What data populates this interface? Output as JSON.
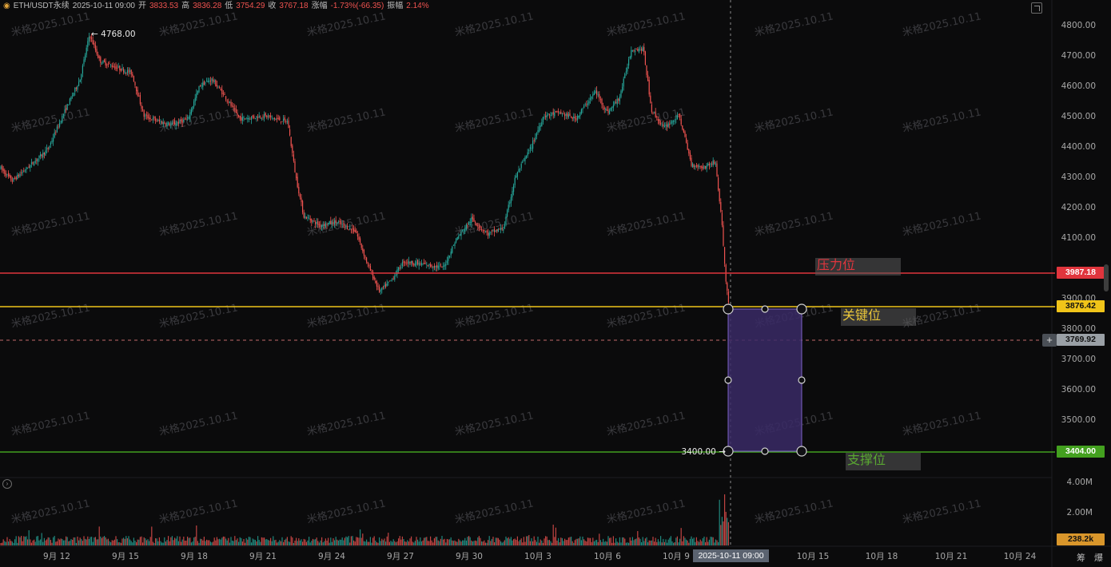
{
  "header": {
    "symbol": "ETH/USDT永续",
    "datetime": "2025-10-11 09:00",
    "open_label": "开",
    "open": "3833.53",
    "high_label": "高",
    "high": "3836.28",
    "low_label": "低",
    "low": "3754.29",
    "close_label": "收",
    "close": "3767.18",
    "change_label": "涨幅",
    "change": "-1.73%(-66.35)",
    "amplitude_label": "振幅",
    "amplitude": "2.14%"
  },
  "watermark": "米格2025.10.11",
  "y_axis": {
    "ticks": [
      "4800.00",
      "4700.00",
      "4600.00",
      "4500.00",
      "4400.00",
      "4300.00",
      "4200.00",
      "4100.00",
      "3900.00",
      "3800.00",
      "3700.00",
      "3600.00",
      "3500.00"
    ],
    "volume_ticks": [
      "4.00M",
      "2.00M"
    ]
  },
  "x_axis": {
    "ticks": [
      "9月 12",
      "9月 15",
      "9月 18",
      "9月 21",
      "9月 24",
      "9月 27",
      "9月 30",
      "10月 3",
      "10月 6",
      "10月 9",
      "10月 15",
      "10月 18",
      "10月 21",
      "10月 24"
    ],
    "crosshair_time": "2025-10-11 09:00"
  },
  "annotations": {
    "peak_label": "← 4768.00",
    "low_label": "3400.00 →",
    "resistance_text": "压力位",
    "key_text": "关键位",
    "support_text": "支撑位"
  },
  "price_labels": {
    "resistance": "3987.18",
    "key": "3876.42",
    "crosshair": "3769.92",
    "support": "3404.00",
    "volume": "238.2k"
  },
  "controls": {
    "crosshair_add": "+",
    "dock_left": "筹",
    "dock_right": "爆",
    "collapse": "›"
  },
  "colors": {
    "up": "#26a69a",
    "down": "#ef5350",
    "resistance": "#e0353d",
    "key": "#f0c419",
    "support": "#43a01f",
    "measure_fill": "#3a2a66",
    "measure_border": "#7d63c8"
  }
}
